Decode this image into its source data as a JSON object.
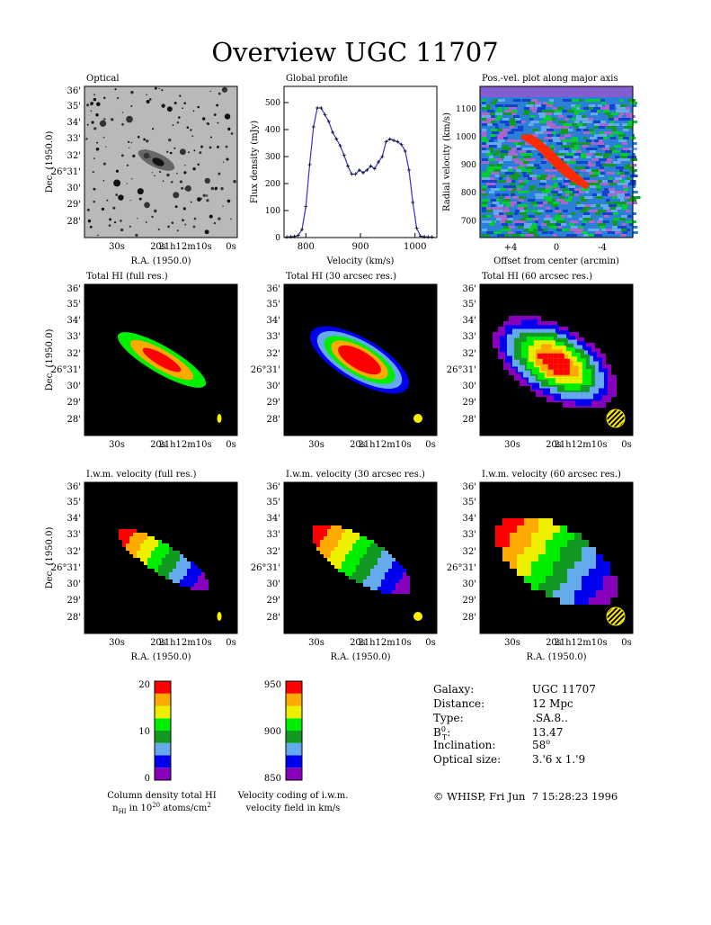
{
  "title": "Overview UGC 11707",
  "ra_ticks": [
    "30",
    "20",
    "21",
    "12",
    "10",
    "0"
  ],
  "dec_ticks_full": [
    "36",
    "35",
    "34",
    "33",
    "32",
    "26",
    "31",
    "30",
    "29",
    "28"
  ],
  "dec_axis_label": "Dec. (1950.0)",
  "ra_axis_label": "R.A. (1950.0)",
  "panels": {
    "optical": {
      "title": "Optical"
    },
    "profile": {
      "title": "Global profile"
    },
    "pv": {
      "title": "Pos.-vel. plot along major axis"
    },
    "hi_full": {
      "title": "Total HI (full res.)"
    },
    "hi_30": {
      "title": "Total HI (30 arcsec res.)"
    },
    "hi_60": {
      "title": "Total HI (60 arcsec res.)"
    },
    "vel_full": {
      "title": "I.w.m. velocity (full res.)"
    },
    "vel_30": {
      "title": "I.w.m. velocity (30 arcsec res.)"
    },
    "vel_60": {
      "title": "I.w.m. velocity (60 arcsec res.)"
    }
  },
  "chart_data": [
    {
      "type": "line",
      "title": "Global profile",
      "xlabel": "Velocity (km/s)",
      "ylabel": "Flux density (mJy)",
      "xlim": [
        760,
        1040
      ],
      "ylim": [
        0,
        560
      ],
      "x_ticks": [
        800,
        900,
        1000
      ],
      "y_ticks": [
        0,
        100,
        200,
        300,
        400,
        500
      ],
      "x": [
        765,
        772,
        779,
        786,
        793,
        800,
        807,
        814,
        821,
        828,
        835,
        842,
        849,
        856,
        863,
        870,
        877,
        884,
        891,
        898,
        905,
        912,
        919,
        926,
        933,
        940,
        947,
        954,
        961,
        968,
        975,
        982,
        989,
        996,
        1003,
        1010,
        1017,
        1024,
        1031
      ],
      "values": [
        2,
        3,
        4,
        8,
        30,
        115,
        270,
        410,
        480,
        480,
        455,
        430,
        390,
        365,
        340,
        305,
        265,
        235,
        235,
        250,
        240,
        250,
        265,
        255,
        280,
        300,
        355,
        365,
        360,
        355,
        345,
        320,
        250,
        130,
        35,
        5,
        3,
        2,
        2
      ]
    },
    {
      "type": "heatmap",
      "title": "Pos.-vel. plot along major axis",
      "xlabel": "Offset from center (arcmin)",
      "ylabel": "Radial velocity (km/s)",
      "x_ticks": [
        "+4",
        "0",
        "-4"
      ],
      "y_ticks": [
        700,
        800,
        900,
        1000,
        1100
      ],
      "ylim": [
        640,
        1180
      ]
    },
    {
      "type": "heatmap",
      "title": "Column density total HI",
      "colorbar_ticks": [
        0,
        10,
        20
      ],
      "colors": [
        "#8800bb",
        "#0000ee",
        "#66aaee",
        "#119922",
        "#00ee00",
        "#eeee00",
        "#ffaa00",
        "#ff0000"
      ]
    },
    {
      "type": "heatmap",
      "title": "Velocity coding of i.w.m. velocity field in km/s",
      "colorbar_ticks": [
        850,
        900,
        950
      ],
      "colors": [
        "#8800bb",
        "#0000ee",
        "#66aaee",
        "#119922",
        "#00ee00",
        "#eeee00",
        "#ffaa00",
        "#ff0000"
      ]
    }
  ],
  "colorbars": {
    "density": {
      "label_line1": "Column density total HI",
      "label_line2_a": "n",
      "label_line2_sub": "HI",
      "label_line2_b": " in 10",
      "label_line2_sup": "20",
      "label_line2_c": " atoms/cm",
      "label_line2_sup2": "2"
    },
    "velocity": {
      "label_line1": "Velocity coding of i.w.m.",
      "label_line2": "velocity field in km/s"
    }
  },
  "info": {
    "rows": [
      {
        "key": "Galaxy:",
        "value": "UGC 11707"
      },
      {
        "key": "Distance:",
        "value": "12 Mpc"
      },
      {
        "key": "Type:",
        "value": ".SA.8.."
      },
      {
        "key": "B",
        "key_sup": "0",
        "key_sub": "T",
        "key_tail": ":",
        "value": "13.47"
      },
      {
        "key": "Inclination:",
        "value": "58",
        "value_sup": "o"
      },
      {
        "key": "Optical size:",
        "value": "3.'6 x 1.'9"
      }
    ],
    "footer": "© WHISP, Fri Jun  7 15:28:23 1996"
  }
}
